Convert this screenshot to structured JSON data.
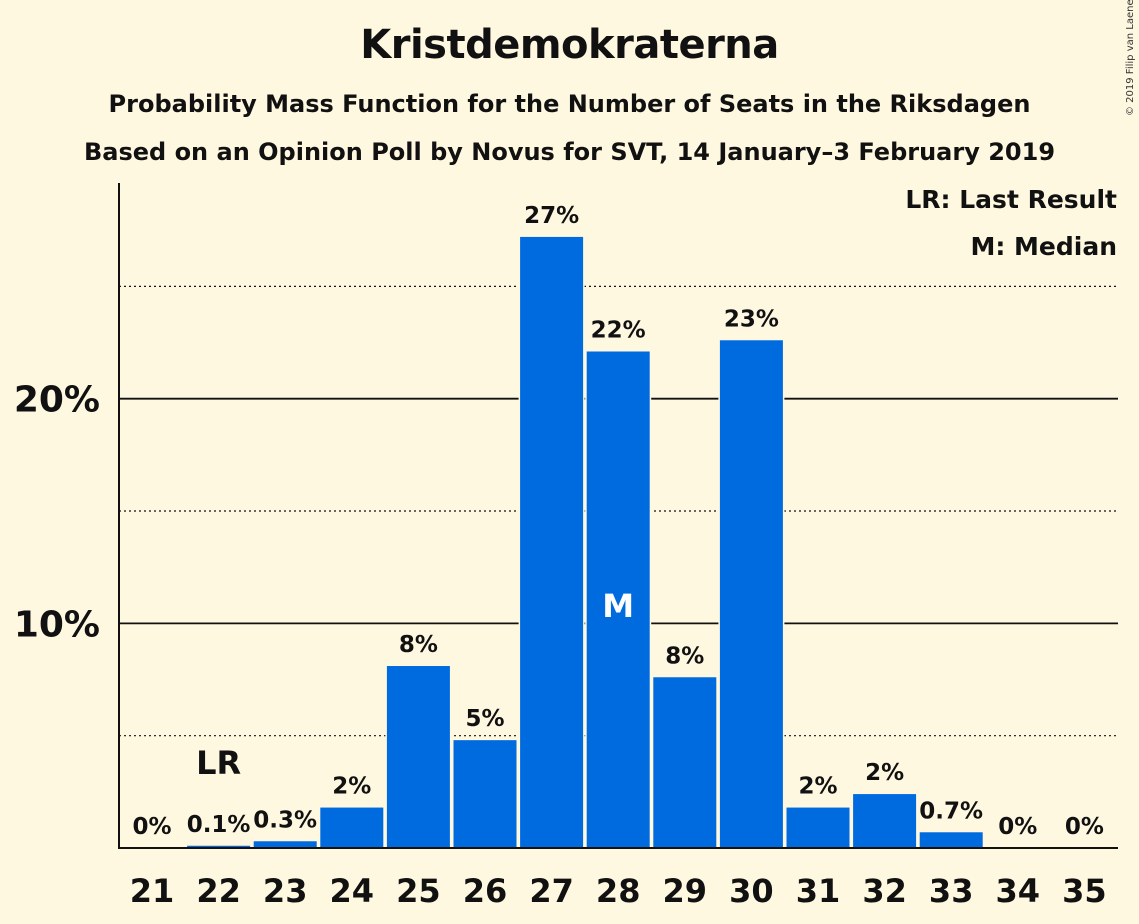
{
  "title": "Kristdemokraterna",
  "subtitle1": "Probability Mass Function for the Number of Seats in the Riksdagen",
  "subtitle2": "Based on an Opinion Poll by Novus for SVT, 14 January–3 February 2019",
  "copyright": "© 2019 Filip van Laenen",
  "legend": {
    "last_result": "LR: Last Result",
    "median": "M: Median"
  },
  "colors": {
    "background": "#fff8e1",
    "bar": "#006adf",
    "text": "#111111"
  },
  "chart_data": {
    "type": "bar",
    "categories": [
      "21",
      "22",
      "23",
      "24",
      "25",
      "26",
      "27",
      "28",
      "29",
      "30",
      "31",
      "32",
      "33",
      "34",
      "35"
    ],
    "values": [
      0,
      0.1,
      0.3,
      1.8,
      8.1,
      4.8,
      27.2,
      22.1,
      7.6,
      22.6,
      1.8,
      2.4,
      0.7,
      0,
      0
    ],
    "data_labels": [
      "0%",
      "0.1%",
      "0.3%",
      "2%",
      "8%",
      "5%",
      "27%",
      "22%",
      "8%",
      "23%",
      "2%",
      "2%",
      "0.7%",
      "0%",
      "0%"
    ],
    "ylim": [
      0,
      29.6
    ],
    "yticks": [
      10,
      20
    ],
    "ytick_labels": [
      "10%",
      "20%"
    ],
    "minor_gridlines": [
      5,
      15,
      25
    ],
    "last_result": {
      "category": "22",
      "label": "LR"
    },
    "median": {
      "category": "28",
      "label": "M"
    }
  }
}
